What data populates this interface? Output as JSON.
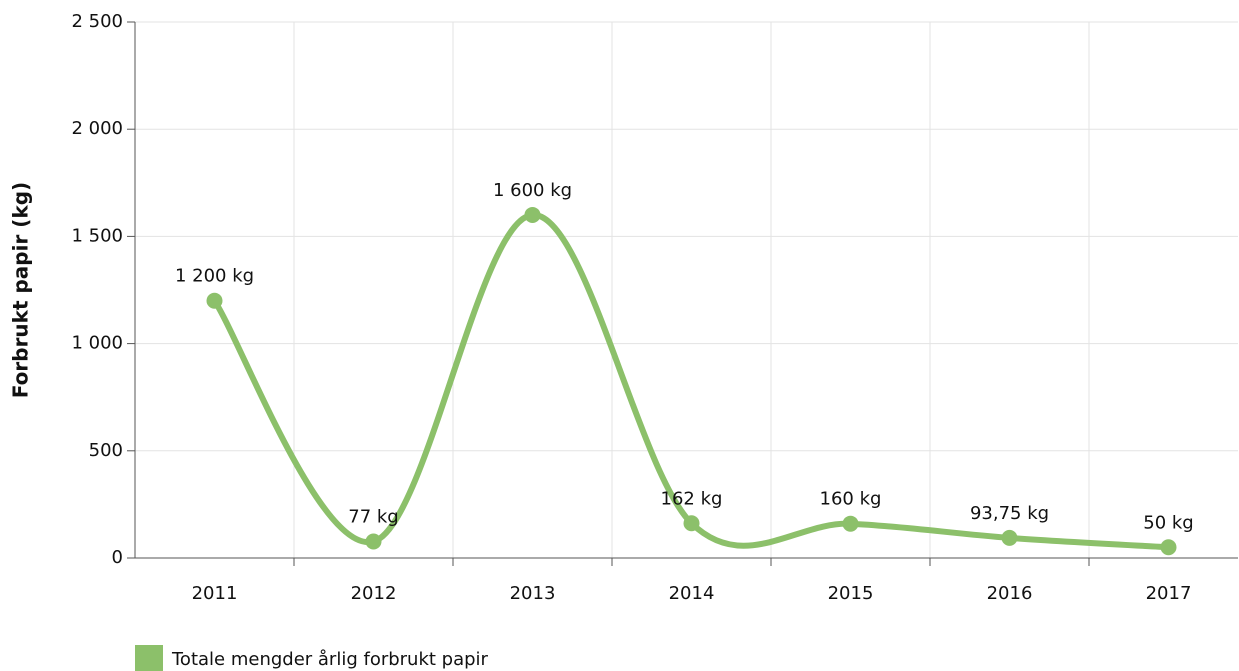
{
  "chart_data": {
    "type": "line",
    "y_label": "Forbrukt papir (kg)",
    "categories": [
      "2011",
      "2012",
      "2013",
      "2014",
      "2015",
      "2016",
      "2017"
    ],
    "series": [
      {
        "name": "Totale mengder årlig forbrukt papir",
        "color": "#8cc06a",
        "values": [
          1200,
          77,
          1600,
          162,
          160,
          93.75,
          50
        ],
        "value_labels": [
          "1 200 kg",
          "77 kg",
          "1 600 kg",
          "162 kg",
          "160 kg",
          "93,75 kg",
          "50 kg"
        ]
      }
    ],
    "ylim": [
      0,
      2500
    ],
    "yticks": [
      0,
      500,
      {
        "value": 1000,
        "label": "1 000"
      },
      {
        "value": 1500,
        "label": "1 500"
      },
      {
        "value": 2000,
        "label": "2 000"
      },
      {
        "value": 2500,
        "label": "2 500"
      }
    ],
    "grid": true
  }
}
